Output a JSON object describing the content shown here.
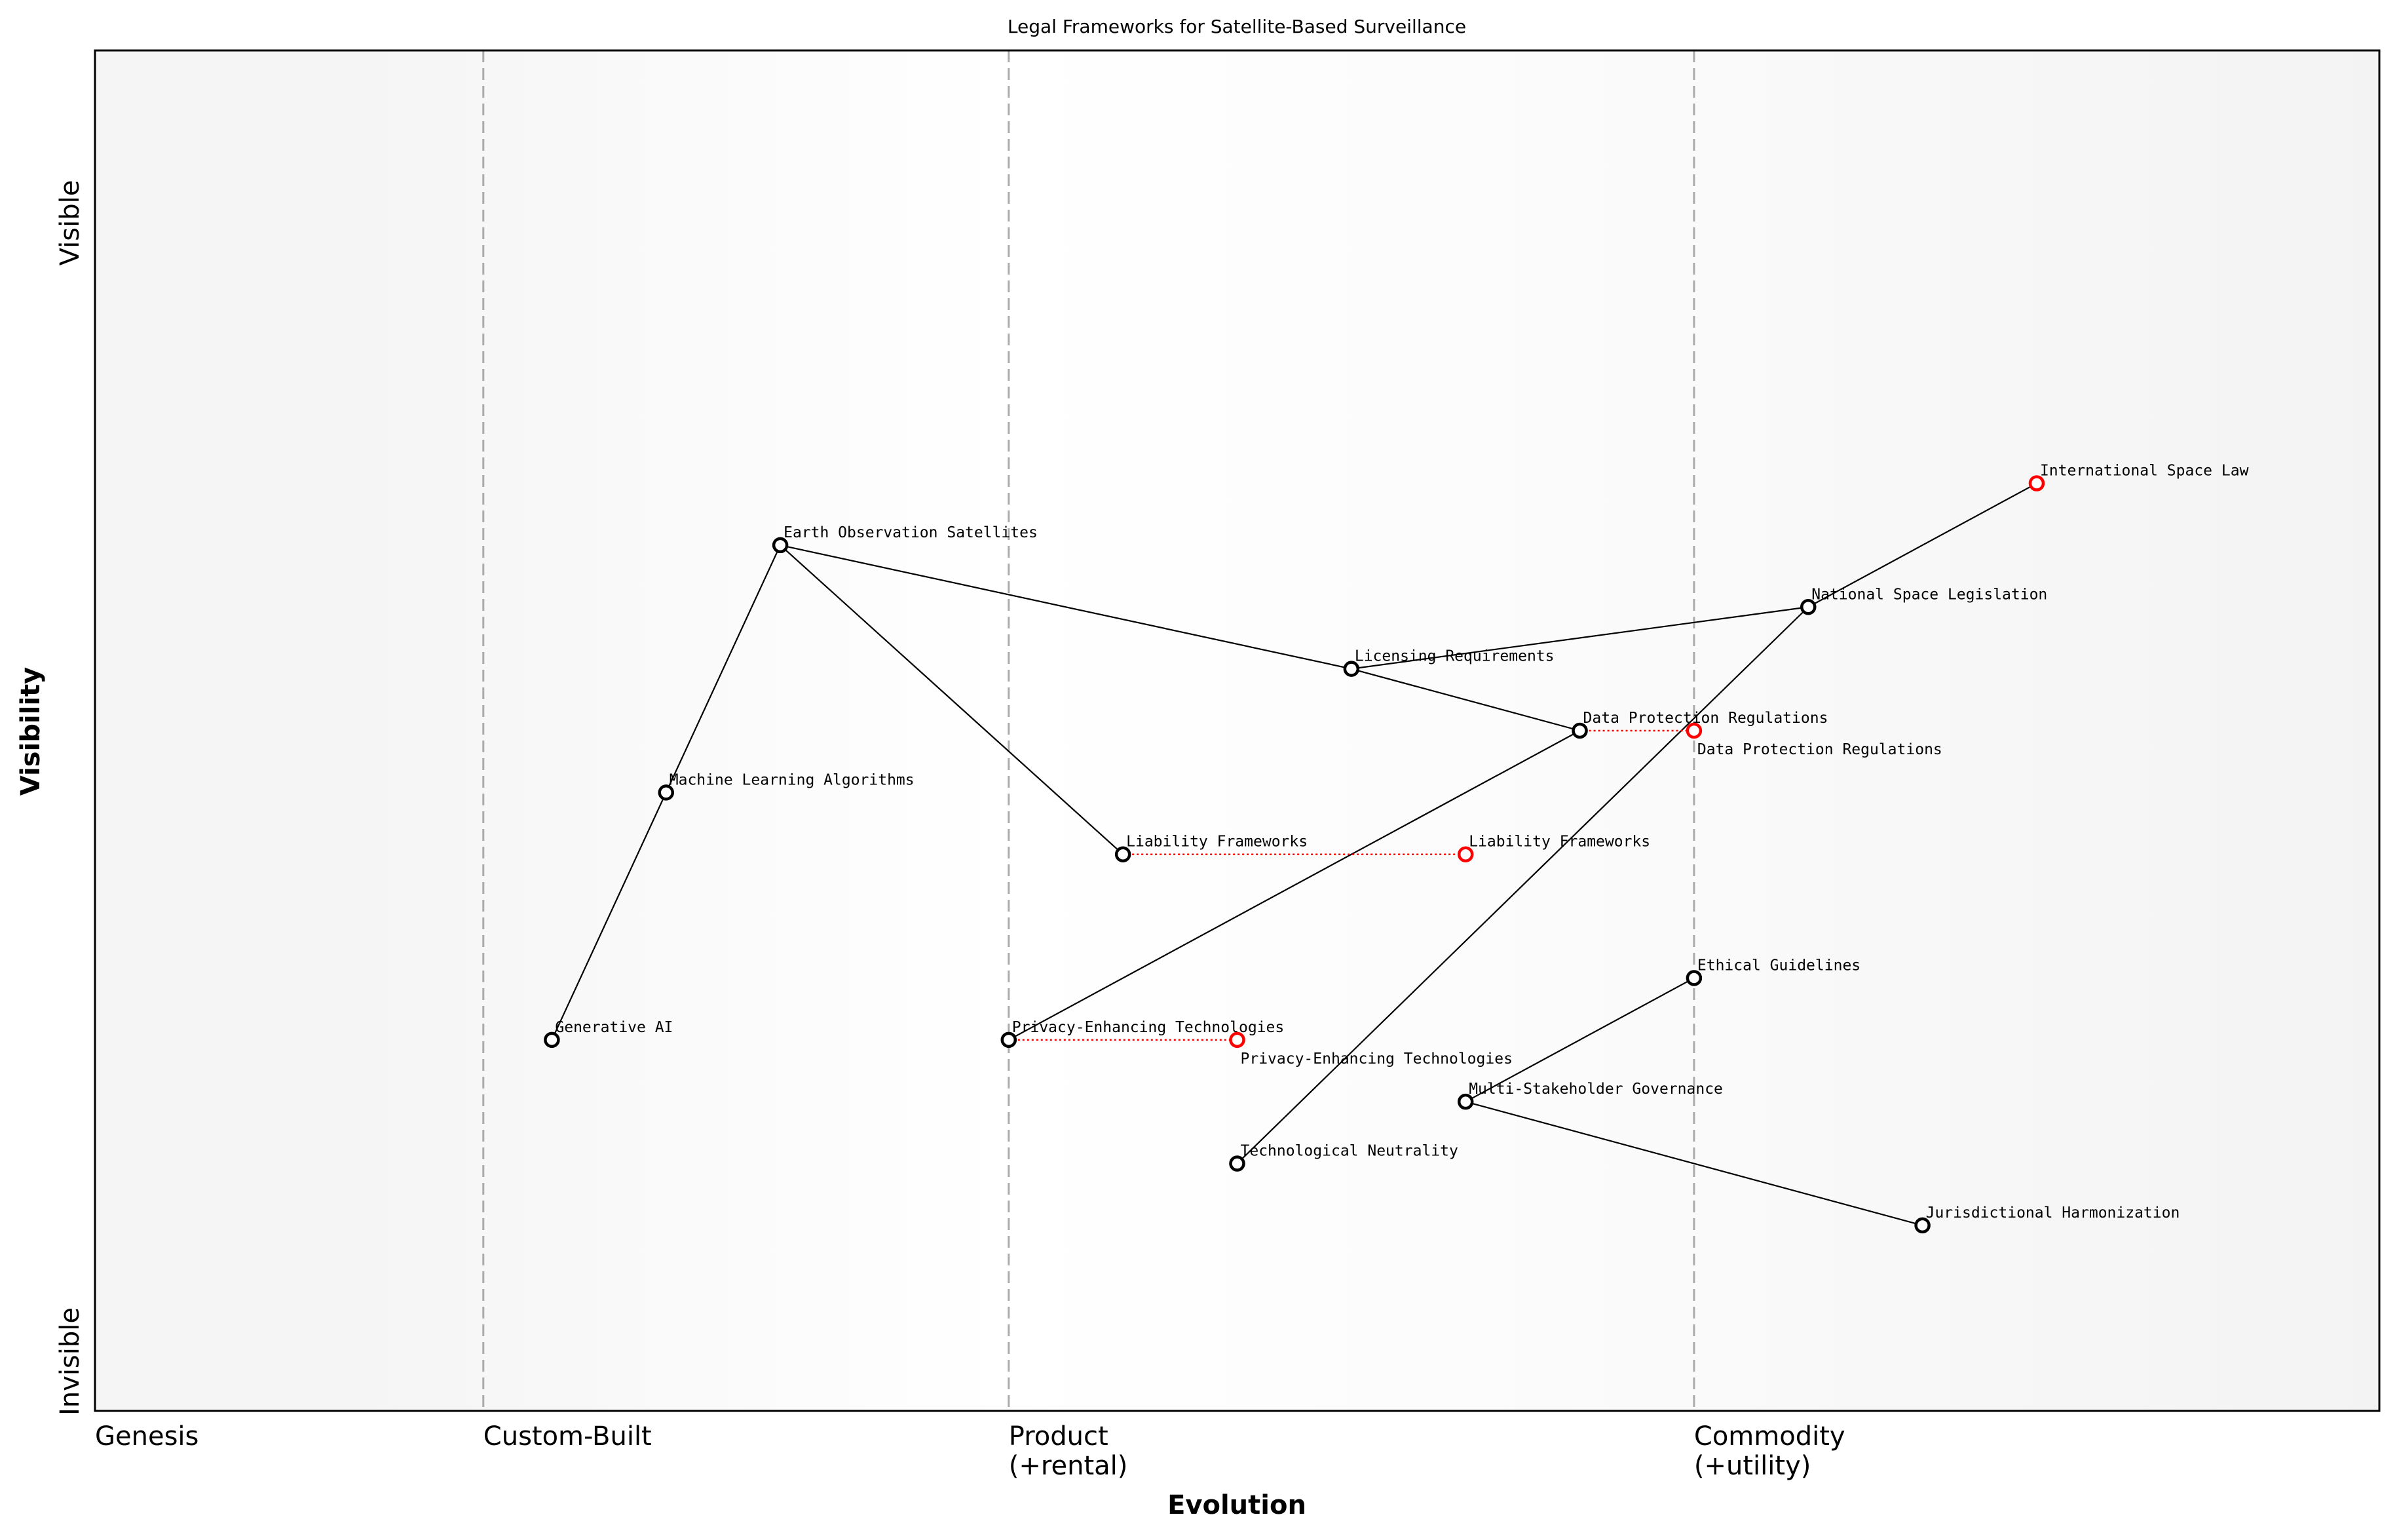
{
  "chart_data": {
    "type": "wardley-map",
    "title": "Legal Frameworks for Satellite-Based Surveillance",
    "xlabel": "Evolution",
    "ylabel": "Visibility",
    "xlim": [
      0,
      1
    ],
    "ylim": [
      0,
      1.1
    ],
    "y_tick_labels": {
      "top": "Visible",
      "bottom": "Invisible"
    },
    "stages": [
      {
        "label": "Genesis",
        "line2": "",
        "x": 0.0
      },
      {
        "label": "Custom-Built",
        "line2": "",
        "x": 0.17
      },
      {
        "label": "Product",
        "line2": "(+rental)",
        "x": 0.4
      },
      {
        "label": "Commodity",
        "line2": "(+utility)",
        "x": 0.7
      }
    ],
    "colors": {
      "node": "#000000",
      "evolved": "#ff0000",
      "stage_line": "#aaaaaa",
      "background_edge": "#f5f5f5"
    },
    "nodes": [
      {
        "name": "Generative AI",
        "x": 0.2,
        "y": 0.3
      },
      {
        "name": "Machine Learning Algorithms",
        "x": 0.25,
        "y": 0.5
      },
      {
        "name": "Earth Observation Satellites",
        "x": 0.3,
        "y": 0.7
      },
      {
        "name": "Licensing Requirements",
        "x": 0.55,
        "y": 0.6
      },
      {
        "name": "Data Protection Regulations",
        "x": 0.65,
        "y": 0.55
      },
      {
        "name": "National Space Legislation",
        "x": 0.75,
        "y": 0.65
      },
      {
        "name": "International Space Law",
        "x": 0.85,
        "y": 0.75,
        "evolved": true
      },
      {
        "name": "Liability Frameworks",
        "x": 0.45,
        "y": 0.45
      },
      {
        "name": "Privacy-Enhancing Technologies",
        "x": 0.4,
        "y": 0.3
      },
      {
        "name": "Technological Neutrality",
        "x": 0.5,
        "y": 0.2
      },
      {
        "name": "Multi-Stakeholder Governance",
        "x": 0.6,
        "y": 0.25
      },
      {
        "name": "Ethical Guidelines",
        "x": 0.7,
        "y": 0.35
      },
      {
        "name": "Jurisdictional Harmonization",
        "x": 0.8,
        "y": 0.15
      }
    ],
    "links": [
      [
        "Generative AI",
        "Machine Learning Algorithms"
      ],
      [
        "Machine Learning Algorithms",
        "Earth Observation Satellites"
      ],
      [
        "Earth Observation Satellites",
        "Licensing Requirements"
      ],
      [
        "Earth Observation Satellites",
        "Liability Frameworks"
      ],
      [
        "Licensing Requirements",
        "National Space Legislation"
      ],
      [
        "Licensing Requirements",
        "Data Protection Regulations"
      ],
      [
        "Data Protection Regulations",
        "Privacy-Enhancing Technologies"
      ],
      [
        "National Space Legislation",
        "International Space Law"
      ],
      [
        "National Space Legislation",
        "Technological Neutrality"
      ],
      [
        "Ethical Guidelines",
        "Multi-Stakeholder Governance"
      ],
      [
        "Multi-Stakeholder Governance",
        "Jurisdictional Harmonization"
      ]
    ],
    "evolutions": [
      {
        "name": "Liability Frameworks",
        "from": 0.45,
        "to": 0.6,
        "y": 0.45
      },
      {
        "name": "Privacy-Enhancing Technologies",
        "from": 0.4,
        "to": 0.5,
        "y": 0.3
      },
      {
        "name": "Data Protection Regulations",
        "from": 0.65,
        "to": 0.7,
        "y": 0.55
      }
    ]
  }
}
